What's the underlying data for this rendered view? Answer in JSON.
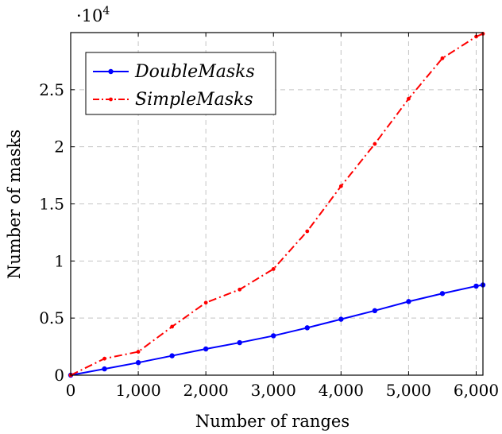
{
  "chart_data": {
    "type": "line",
    "title": "",
    "xlabel": "Number of ranges",
    "ylabel": "Number of masks",
    "y_scale_label": "·10",
    "y_scale_exponent": "4",
    "xlim": [
      0,
      6100
    ],
    "ylim": [
      0,
      30000
    ],
    "x_ticks": [
      0,
      1000,
      2000,
      3000,
      4000,
      5000,
      6000
    ],
    "x_tick_labels": [
      "0",
      "1,000",
      "2,000",
      "3,000",
      "4,000",
      "5,000",
      "6,000"
    ],
    "y_ticks": [
      0,
      5000,
      10000,
      15000,
      20000,
      25000
    ],
    "y_tick_labels": [
      "0",
      "0.5",
      "1",
      "1.5",
      "2",
      "2.5"
    ],
    "grid": true,
    "legend_position": "top-left",
    "series": [
      {
        "name": "DoubleMasks",
        "color": "#0000ff",
        "line_style": "solid",
        "marker": "circle",
        "x": [
          0,
          500,
          1000,
          1500,
          2000,
          2500,
          3000,
          3500,
          4000,
          4500,
          5000,
          5500,
          6000,
          6100
        ],
        "y": [
          0,
          550,
          1100,
          1700,
          2300,
          2850,
          3450,
          4150,
          4900,
          5650,
          6450,
          7150,
          7800,
          7900
        ]
      },
      {
        "name": "SimpleMasks",
        "color": "#ff0000",
        "line_style": "dash-dot",
        "marker": "dot",
        "x": [
          0,
          500,
          1000,
          1500,
          2000,
          2500,
          3000,
          3500,
          4000,
          4500,
          5000,
          5500,
          6000,
          6100
        ],
        "y": [
          0,
          1450,
          2050,
          4250,
          6350,
          7500,
          9300,
          12600,
          16550,
          20250,
          24200,
          27750,
          29650,
          29900
        ]
      }
    ]
  }
}
